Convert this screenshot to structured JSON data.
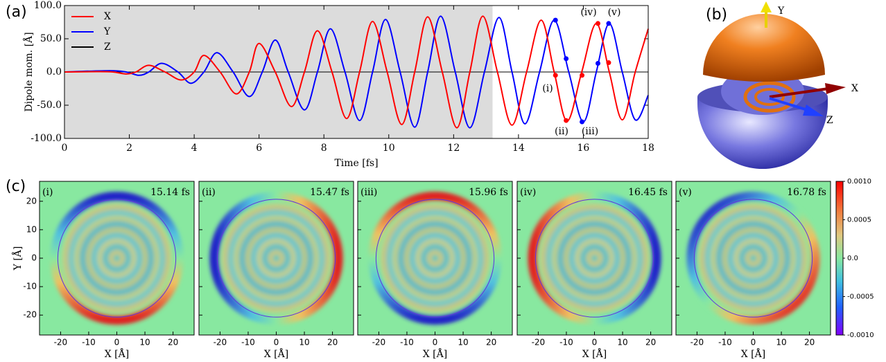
{
  "chart_data": [
    {
      "type": "line",
      "panel_label": "(a)",
      "xlabel": "Time [fs]",
      "ylabel": "Dipole mom. [Å]",
      "xlim": [
        0,
        18
      ],
      "xticks": [
        0,
        2,
        4,
        6,
        8,
        10,
        12,
        14,
        16,
        18
      ],
      "ylim": [
        -100,
        100
      ],
      "yticks": [
        {
          "value": -100,
          "label": "-100.0"
        },
        {
          "value": -50,
          "label": "-50.0"
        },
        {
          "value": 0,
          "label": "0.0"
        },
        {
          "value": 50,
          "label": "50.0"
        },
        {
          "value": 100,
          "label": "100.0"
        }
      ],
      "shade": [
        0,
        13.2
      ],
      "legend": "upper-left",
      "marker_times": [
        15.14,
        15.47,
        15.96,
        16.45,
        16.78
      ],
      "marker_labels": [
        "(i)",
        "(ii)",
        "(iii)",
        "(iv)",
        "(v)"
      ],
      "series": [
        {
          "name": "X",
          "color": "#ff0000",
          "x": [
            0,
            1.0,
            1.5,
            1.9,
            2.2,
            2.6,
            3.1,
            3.6,
            4.0,
            4.3,
            4.8,
            5.3,
            5.7,
            6.0,
            6.5,
            7.0,
            7.4,
            7.8,
            8.25,
            8.7,
            9.1,
            9.5,
            9.95,
            10.4,
            10.8,
            11.2,
            11.65,
            12.1,
            12.5,
            12.9,
            13.35,
            13.8,
            14.25,
            14.7,
            15.1,
            15.5,
            15.95,
            16.4,
            16.8,
            17.2,
            17.6,
            18
          ],
          "values": [
            0,
            0.5,
            0,
            -3,
            0,
            10,
            0,
            -12,
            0,
            25,
            0,
            -33,
            0,
            43,
            0,
            -52,
            0,
            62,
            0,
            -70,
            0,
            76,
            0,
            -79,
            0,
            83,
            0,
            -84,
            0,
            84,
            0,
            -80,
            0,
            78,
            0,
            -74,
            0,
            73,
            0,
            -72,
            0,
            65
          ],
          "marker_values": [
            -5,
            -73,
            -5,
            73,
            14
          ]
        },
        {
          "name": "Y",
          "color": "#0000ff",
          "x": [
            0,
            1.4,
            1.9,
            2.3,
            2.6,
            3.0,
            3.5,
            3.9,
            4.3,
            4.7,
            5.2,
            5.7,
            6.1,
            6.5,
            6.9,
            7.4,
            7.8,
            8.2,
            8.65,
            9.1,
            9.5,
            9.9,
            10.35,
            10.8,
            11.2,
            11.6,
            12.05,
            12.5,
            12.95,
            13.4,
            13.8,
            14.2,
            14.65,
            15.1,
            15.55,
            16.0,
            16.4,
            16.8,
            17.2,
            17.6,
            18
          ],
          "values": [
            0,
            2,
            0,
            -5,
            0,
            13,
            0,
            -17,
            0,
            29,
            0,
            -37,
            0,
            48,
            0,
            -57,
            0,
            65,
            0,
            -73,
            0,
            79,
            0,
            -83,
            0,
            84,
            0,
            -84,
            0,
            82,
            0,
            -78,
            0,
            78,
            0,
            -75,
            0,
            73,
            0,
            -72,
            -35
          ],
          "marker_values": [
            78,
            20,
            -75,
            13,
            73
          ]
        },
        {
          "name": "Z",
          "color": "#000000",
          "x": [
            0,
            18
          ],
          "values": [
            0,
            0
          ]
        }
      ]
    },
    {
      "type": "heatmap",
      "panel_label": "(c)",
      "xlabel": "X [Å]",
      "ylabel": "Y [Å]",
      "xlim": [
        -27.5,
        27.5
      ],
      "xticks": [
        -20,
        -10,
        0,
        10,
        20
      ],
      "ylim": [
        -27,
        27
      ],
      "yticks": [
        -20,
        -10,
        0,
        10,
        20
      ],
      "circle_radius": 21,
      "panels": [
        {
          "label": "(i)",
          "time": "15.14 fs"
        },
        {
          "label": "(ii)",
          "time": "15.47 fs"
        },
        {
          "label": "(iii)",
          "time": "15.96 fs"
        },
        {
          "label": "(iv)",
          "time": "16.45 fs"
        },
        {
          "label": "(v)",
          "time": "16.78 fs"
        }
      ],
      "clim": [
        -0.001,
        0.001
      ],
      "cticks": [
        {
          "value": 0.001,
          "label": "0.0010"
        },
        {
          "value": 0.0005,
          "label": "0.0005"
        },
        {
          "value": 0,
          "label": "0.0"
        },
        {
          "value": -0.0005,
          "label": "-0.0005"
        },
        {
          "value": -0.001,
          "label": "-0.0010"
        }
      ]
    }
  ],
  "panel_b": {
    "label": "(b)",
    "axes": [
      "Y",
      "X",
      "Z"
    ]
  }
}
